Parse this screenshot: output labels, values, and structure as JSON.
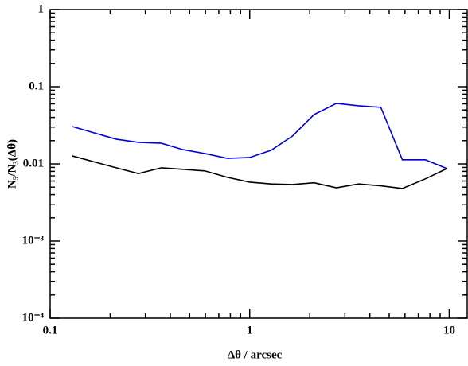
{
  "chart_data": {
    "type": "line",
    "xlabel": "Δθ / arcsec",
    "ylabel": "N₅/N₃(Δθ)",
    "xlog": true,
    "ylog": true,
    "xlim": [
      0.1,
      12.3
    ],
    "ylim": [
      0.0001,
      1
    ],
    "xticks": [
      0.1,
      1,
      10
    ],
    "yticks": [
      {
        "value": 0.0001,
        "label": "10⁻⁴"
      },
      {
        "value": 0.001,
        "label": "10⁻³"
      },
      0.01,
      0.1,
      1
    ],
    "series": [
      {
        "name": "blue",
        "color": "#0000dd",
        "x": [
          0.129,
          0.214,
          0.277,
          0.361,
          0.463,
          0.598,
          0.773,
          1.0,
          1.28,
          1.64,
          2.1,
          2.72,
          3.51,
          4.54,
          5.82,
          7.59,
          9.73
        ],
        "values": [
          0.0305,
          0.0209,
          0.019,
          0.0185,
          0.0153,
          0.0136,
          0.0118,
          0.0121,
          0.015,
          0.023,
          0.0435,
          0.0608,
          0.0567,
          0.0541,
          0.0113,
          0.0113,
          0.0087
        ]
      },
      {
        "name": "black",
        "color": "#000000",
        "x": [
          0.129,
          0.214,
          0.277,
          0.361,
          0.463,
          0.598,
          0.773,
          1.0,
          1.28,
          1.64,
          2.1,
          2.72,
          3.51,
          4.54,
          5.82,
          7.59,
          9.73
        ],
        "values": [
          0.0127,
          0.0089,
          0.0075,
          0.0089,
          0.0085,
          0.0081,
          0.0067,
          0.0058,
          0.0055,
          0.0054,
          0.0057,
          0.0049,
          0.0055,
          0.0052,
          0.0048,
          0.0064,
          0.0087
        ]
      }
    ]
  }
}
